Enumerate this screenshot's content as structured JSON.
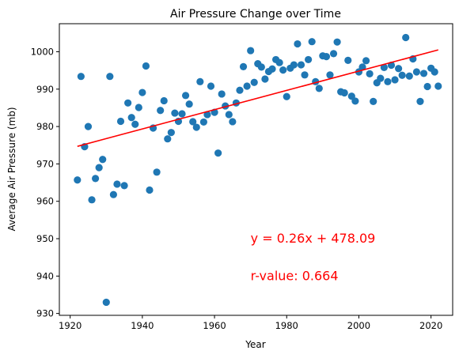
{
  "chart_data": {
    "type": "scatter",
    "title": "Air Pressure Change over Time",
    "xlabel": "Year",
    "ylabel": "Average Air Pressure (mb)",
    "xlim": [
      1917,
      2026
    ],
    "ylim": [
      929.5,
      1007.5
    ],
    "xticks": [
      1920,
      1940,
      1960,
      1980,
      2000,
      2020
    ],
    "yticks": [
      930,
      940,
      950,
      960,
      970,
      980,
      990,
      1000
    ],
    "grid": false,
    "point_color": "#1f77b4",
    "line_color": "#ff0000",
    "points": [
      [
        1922,
        965.7
      ],
      [
        1923,
        993.4
      ],
      [
        1924,
        974.6
      ],
      [
        1925,
        980.0
      ],
      [
        1926,
        960.4
      ],
      [
        1927,
        966.1
      ],
      [
        1928,
        969.0
      ],
      [
        1929,
        971.2
      ],
      [
        1930,
        933.0
      ],
      [
        1931,
        993.4
      ],
      [
        1932,
        961.8
      ],
      [
        1933,
        964.6
      ],
      [
        1934,
        981.4
      ],
      [
        1935,
        964.2
      ],
      [
        1936,
        986.3
      ],
      [
        1937,
        982.4
      ],
      [
        1938,
        980.6
      ],
      [
        1939,
        985.1
      ],
      [
        1940,
        989.1
      ],
      [
        1941,
        996.2
      ],
      [
        1942,
        963.0
      ],
      [
        1943,
        979.6
      ],
      [
        1944,
        967.8
      ],
      [
        1945,
        984.3
      ],
      [
        1946,
        986.9
      ],
      [
        1947,
        976.7
      ],
      [
        1948,
        978.4
      ],
      [
        1949,
        983.6
      ],
      [
        1950,
        981.4
      ],
      [
        1951,
        983.4
      ],
      [
        1952,
        988.3
      ],
      [
        1953,
        986.0
      ],
      [
        1954,
        981.3
      ],
      [
        1955,
        979.8
      ],
      [
        1956,
        992.0
      ],
      [
        1957,
        981.2
      ],
      [
        1958,
        983.2
      ],
      [
        1959,
        990.8
      ],
      [
        1960,
        983.8
      ],
      [
        1961,
        972.9
      ],
      [
        1962,
        988.7
      ],
      [
        1963,
        985.5
      ],
      [
        1964,
        983.2
      ],
      [
        1965,
        981.3
      ],
      [
        1966,
        986.3
      ],
      [
        1967,
        989.7
      ],
      [
        1968,
        996.0
      ],
      [
        1969,
        990.8
      ],
      [
        1970,
        1000.3
      ],
      [
        1971,
        991.8
      ],
      [
        1972,
        996.8
      ],
      [
        1973,
        995.9
      ],
      [
        1974,
        992.7
      ],
      [
        1975,
        994.7
      ],
      [
        1976,
        995.4
      ],
      [
        1977,
        997.9
      ],
      [
        1978,
        997.1
      ],
      [
        1979,
        995.1
      ],
      [
        1980,
        988.0
      ],
      [
        1981,
        995.6
      ],
      [
        1982,
        996.5
      ],
      [
        1983,
        1002.1
      ],
      [
        1984,
        996.5
      ],
      [
        1985,
        993.8
      ],
      [
        1986,
        997.9
      ],
      [
        1987,
        1002.7
      ],
      [
        1988,
        992.0
      ],
      [
        1989,
        990.2
      ],
      [
        1990,
        998.9
      ],
      [
        1991,
        998.7
      ],
      [
        1992,
        993.8
      ],
      [
        1993,
        999.5
      ],
      [
        1994,
        1002.6
      ],
      [
        1995,
        989.3
      ],
      [
        1996,
        989.0
      ],
      [
        1997,
        997.7
      ],
      [
        1998,
        988.1
      ],
      [
        1999,
        986.8
      ],
      [
        2000,
        994.6
      ],
      [
        2001,
        995.9
      ],
      [
        2002,
        997.6
      ],
      [
        2003,
        994.1
      ],
      [
        2004,
        986.7
      ],
      [
        2005,
        991.7
      ],
      [
        2006,
        992.9
      ],
      [
        2007,
        995.8
      ],
      [
        2008,
        992.0
      ],
      [
        2009,
        996.4
      ],
      [
        2010,
        992.5
      ],
      [
        2011,
        995.5
      ],
      [
        2012,
        993.7
      ],
      [
        2013,
        1003.8
      ],
      [
        2014,
        993.5
      ],
      [
        2015,
        998.1
      ],
      [
        2016,
        994.6
      ],
      [
        2017,
        986.7
      ],
      [
        2018,
        994.2
      ],
      [
        2019,
        990.7
      ],
      [
        2020,
        995.6
      ],
      [
        2021,
        994.6
      ],
      [
        2022,
        990.8
      ]
    ],
    "regression": {
      "slope": 0.26,
      "intercept": 478.09,
      "x_range": [
        1922,
        2022
      ],
      "y_range": [
        974.7,
        1000.5
      ]
    },
    "annotations": [
      {
        "text": "y = 0.26x + 478.09",
        "x": 1970,
        "y": 950,
        "color": "#ff0000"
      },
      {
        "text": "r-value: 0.664",
        "x": 1970,
        "y": 940,
        "color": "#ff0000"
      }
    ]
  }
}
